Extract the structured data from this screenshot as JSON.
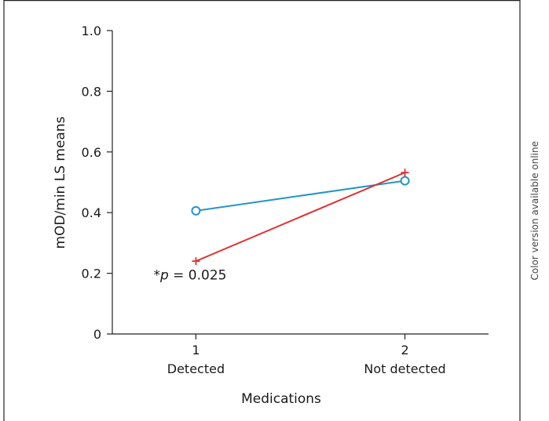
{
  "side_note": "Color version available online",
  "chart_data": {
    "type": "line",
    "title": "",
    "xlabel": "Medications",
    "ylabel": "mOD/min LS means",
    "x": [
      1,
      2
    ],
    "x_tick_labels": [
      "1",
      "2"
    ],
    "x_category_labels": [
      "Detected",
      "Not detected"
    ],
    "xlim": [
      0.6,
      2.4
    ],
    "ylim": [
      0,
      1.0
    ],
    "y_ticks": [
      0,
      0.2,
      0.4,
      0.6,
      0.8,
      1.0
    ],
    "y_tick_labels": [
      "0",
      "0.2",
      "0.4",
      "0.6",
      "0.8",
      "1.0"
    ],
    "grid": false,
    "series": [
      {
        "marker": "circle",
        "color": "#2394c8",
        "values": [
          0.406,
          0.505
        ]
      },
      {
        "marker": "plus",
        "color": "#e03030",
        "values": [
          0.24,
          0.532
        ]
      }
    ],
    "annotation": {
      "prefix": "*",
      "variable": "p",
      "suffix": " = 0.025",
      "x": 1,
      "y": 0.195
    }
  }
}
